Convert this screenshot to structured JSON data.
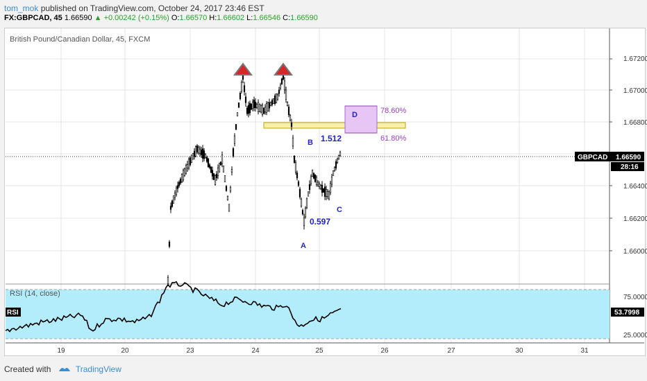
{
  "header": {
    "author": "tom_mok",
    "published": "published on TradingView.com, October 24, 2017 23:46 EST",
    "symbol": "FX:GBPCAD, 45",
    "last": "1.66590",
    "change": "▲ +0.00242 (+0.15%)",
    "o_label": "O:",
    "o": "1.66570",
    "h_label": "H:",
    "h": "1.66602",
    "l_label": "L:",
    "l": "1.66546",
    "c_label": "C:",
    "c": "1.66590"
  },
  "chart": {
    "title": "British Pound/Canadian Dollar, 45, FXCM",
    "price_ticks": [
      "1.67200",
      "1.67000",
      "1.66800",
      "1.66600",
      "1.66400",
      "1.66200",
      "1.66000"
    ],
    "price_tag_symbol": "GBPCAD",
    "price_tag_value": "1.66590",
    "timer": "28:16",
    "annotations": {
      "A": "A",
      "B": "B",
      "C": "C",
      "D": "D",
      "ratio_ab": "0.597",
      "ratio_bc": "1.512",
      "fib_786": "78.60%",
      "fib_618": "61.80%"
    }
  },
  "rsi": {
    "title": "RSI (14, close)",
    "tag": "RSI",
    "ticks": [
      "75.0000",
      "25.0000"
    ],
    "value": "53.7998"
  },
  "x_axis": [
    "19",
    "20",
    "23",
    "24",
    "25",
    "26",
    "27",
    "30",
    "31"
  ],
  "footer": {
    "created": "Created with",
    "brand": "TradingView"
  },
  "colors": {
    "up": "#2ca02c",
    "accent": "#3b8ed0",
    "rsi_band": "#b3ecfb",
    "zone": "#f6efae",
    "d_box": "#e7c5f5",
    "pattern": "#2222cc"
  }
}
